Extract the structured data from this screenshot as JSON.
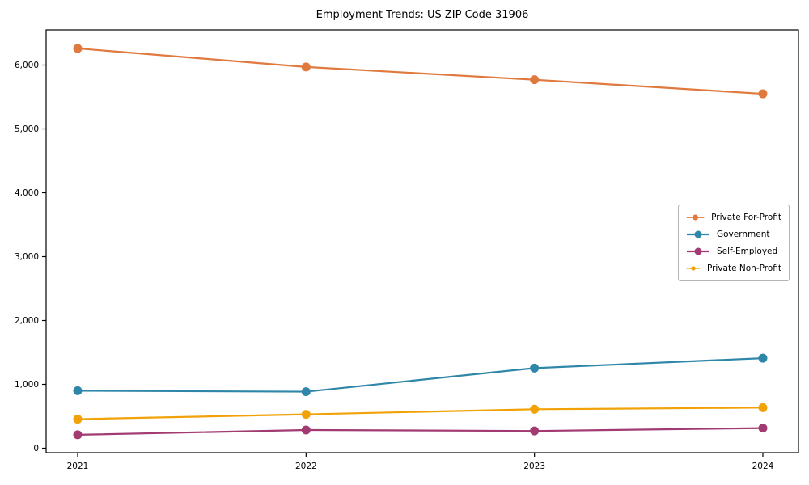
{
  "chart_data": {
    "type": "line",
    "title": "Employment Trends: US ZIP Code 31906",
    "categories": [
      "2021",
      "2022",
      "2023",
      "2024"
    ],
    "series": [
      {
        "name": "Private For-Profit",
        "color": "#E0793D",
        "values": [
          6260,
          5970,
          5770,
          5550
        ]
      },
      {
        "name": "Government",
        "color": "#2E86A8",
        "values": [
          900,
          885,
          1255,
          1410
        ]
      },
      {
        "name": "Self-Employed",
        "color": "#A23B72",
        "values": [
          210,
          285,
          270,
          315
        ]
      },
      {
        "name": "Private Non-Profit",
        "color": "#F1A208",
        "values": [
          455,
          530,
          610,
          635
        ]
      }
    ],
    "xlabel": "",
    "ylabel": "",
    "ylim": [
      0,
      6500
    ],
    "yticks": [
      0,
      1000,
      2000,
      3000,
      4000,
      5000,
      6000
    ],
    "ytick_labels": [
      "0",
      "1,000",
      "2,000",
      "3,000",
      "4,000",
      "5,000",
      "6,000"
    ],
    "grid": false,
    "legend_position": "center-right",
    "marker": "circle",
    "axis_color": "#000000",
    "background_color": "#ffffff"
  }
}
